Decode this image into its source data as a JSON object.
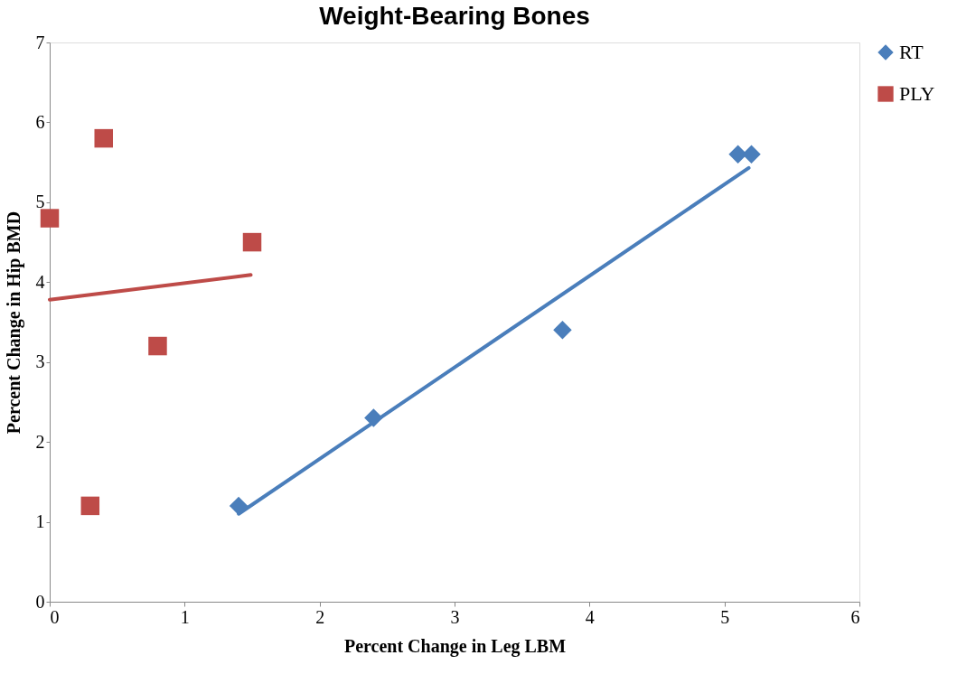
{
  "chart_data": {
    "type": "scatter",
    "title": "Weight-Bearing Bones",
    "xlabel": "Percent Change in  Leg LBM",
    "ylabel": "Percent Change in Hip BMD",
    "xlim": [
      0,
      6
    ],
    "xticks": [
      0,
      1,
      2,
      3,
      4,
      5,
      6
    ],
    "ylim": [
      0,
      7
    ],
    "yticks": [
      0,
      1,
      2,
      3,
      4,
      5,
      6,
      7
    ],
    "grid": false,
    "legend": "right",
    "series": [
      {
        "name": "RT",
        "color": "#4a7ebb",
        "marker": "diamond",
        "x": [
          1.4,
          2.4,
          3.8,
          5.1,
          5.2
        ],
        "values": [
          1.2,
          2.3,
          3.4,
          5.6,
          5.6
        ]
      },
      {
        "name": "PLY",
        "color": "#be4b48",
        "marker": "square",
        "x": [
          0,
          0.4,
          1.5,
          0.8,
          0.3
        ],
        "values": [
          4.8,
          5.8,
          4.5,
          3.2,
          1.2
        ]
      },
      {
        "type": "line",
        "color": "#4a7ebb",
        "x": [
          1.4,
          5.18
        ],
        "values": [
          1.1,
          5.43
        ]
      },
      {
        "type": "line",
        "color": "#be4b48",
        "x": [
          0,
          1.49
        ],
        "values": [
          3.78,
          4.09
        ]
      }
    ]
  }
}
